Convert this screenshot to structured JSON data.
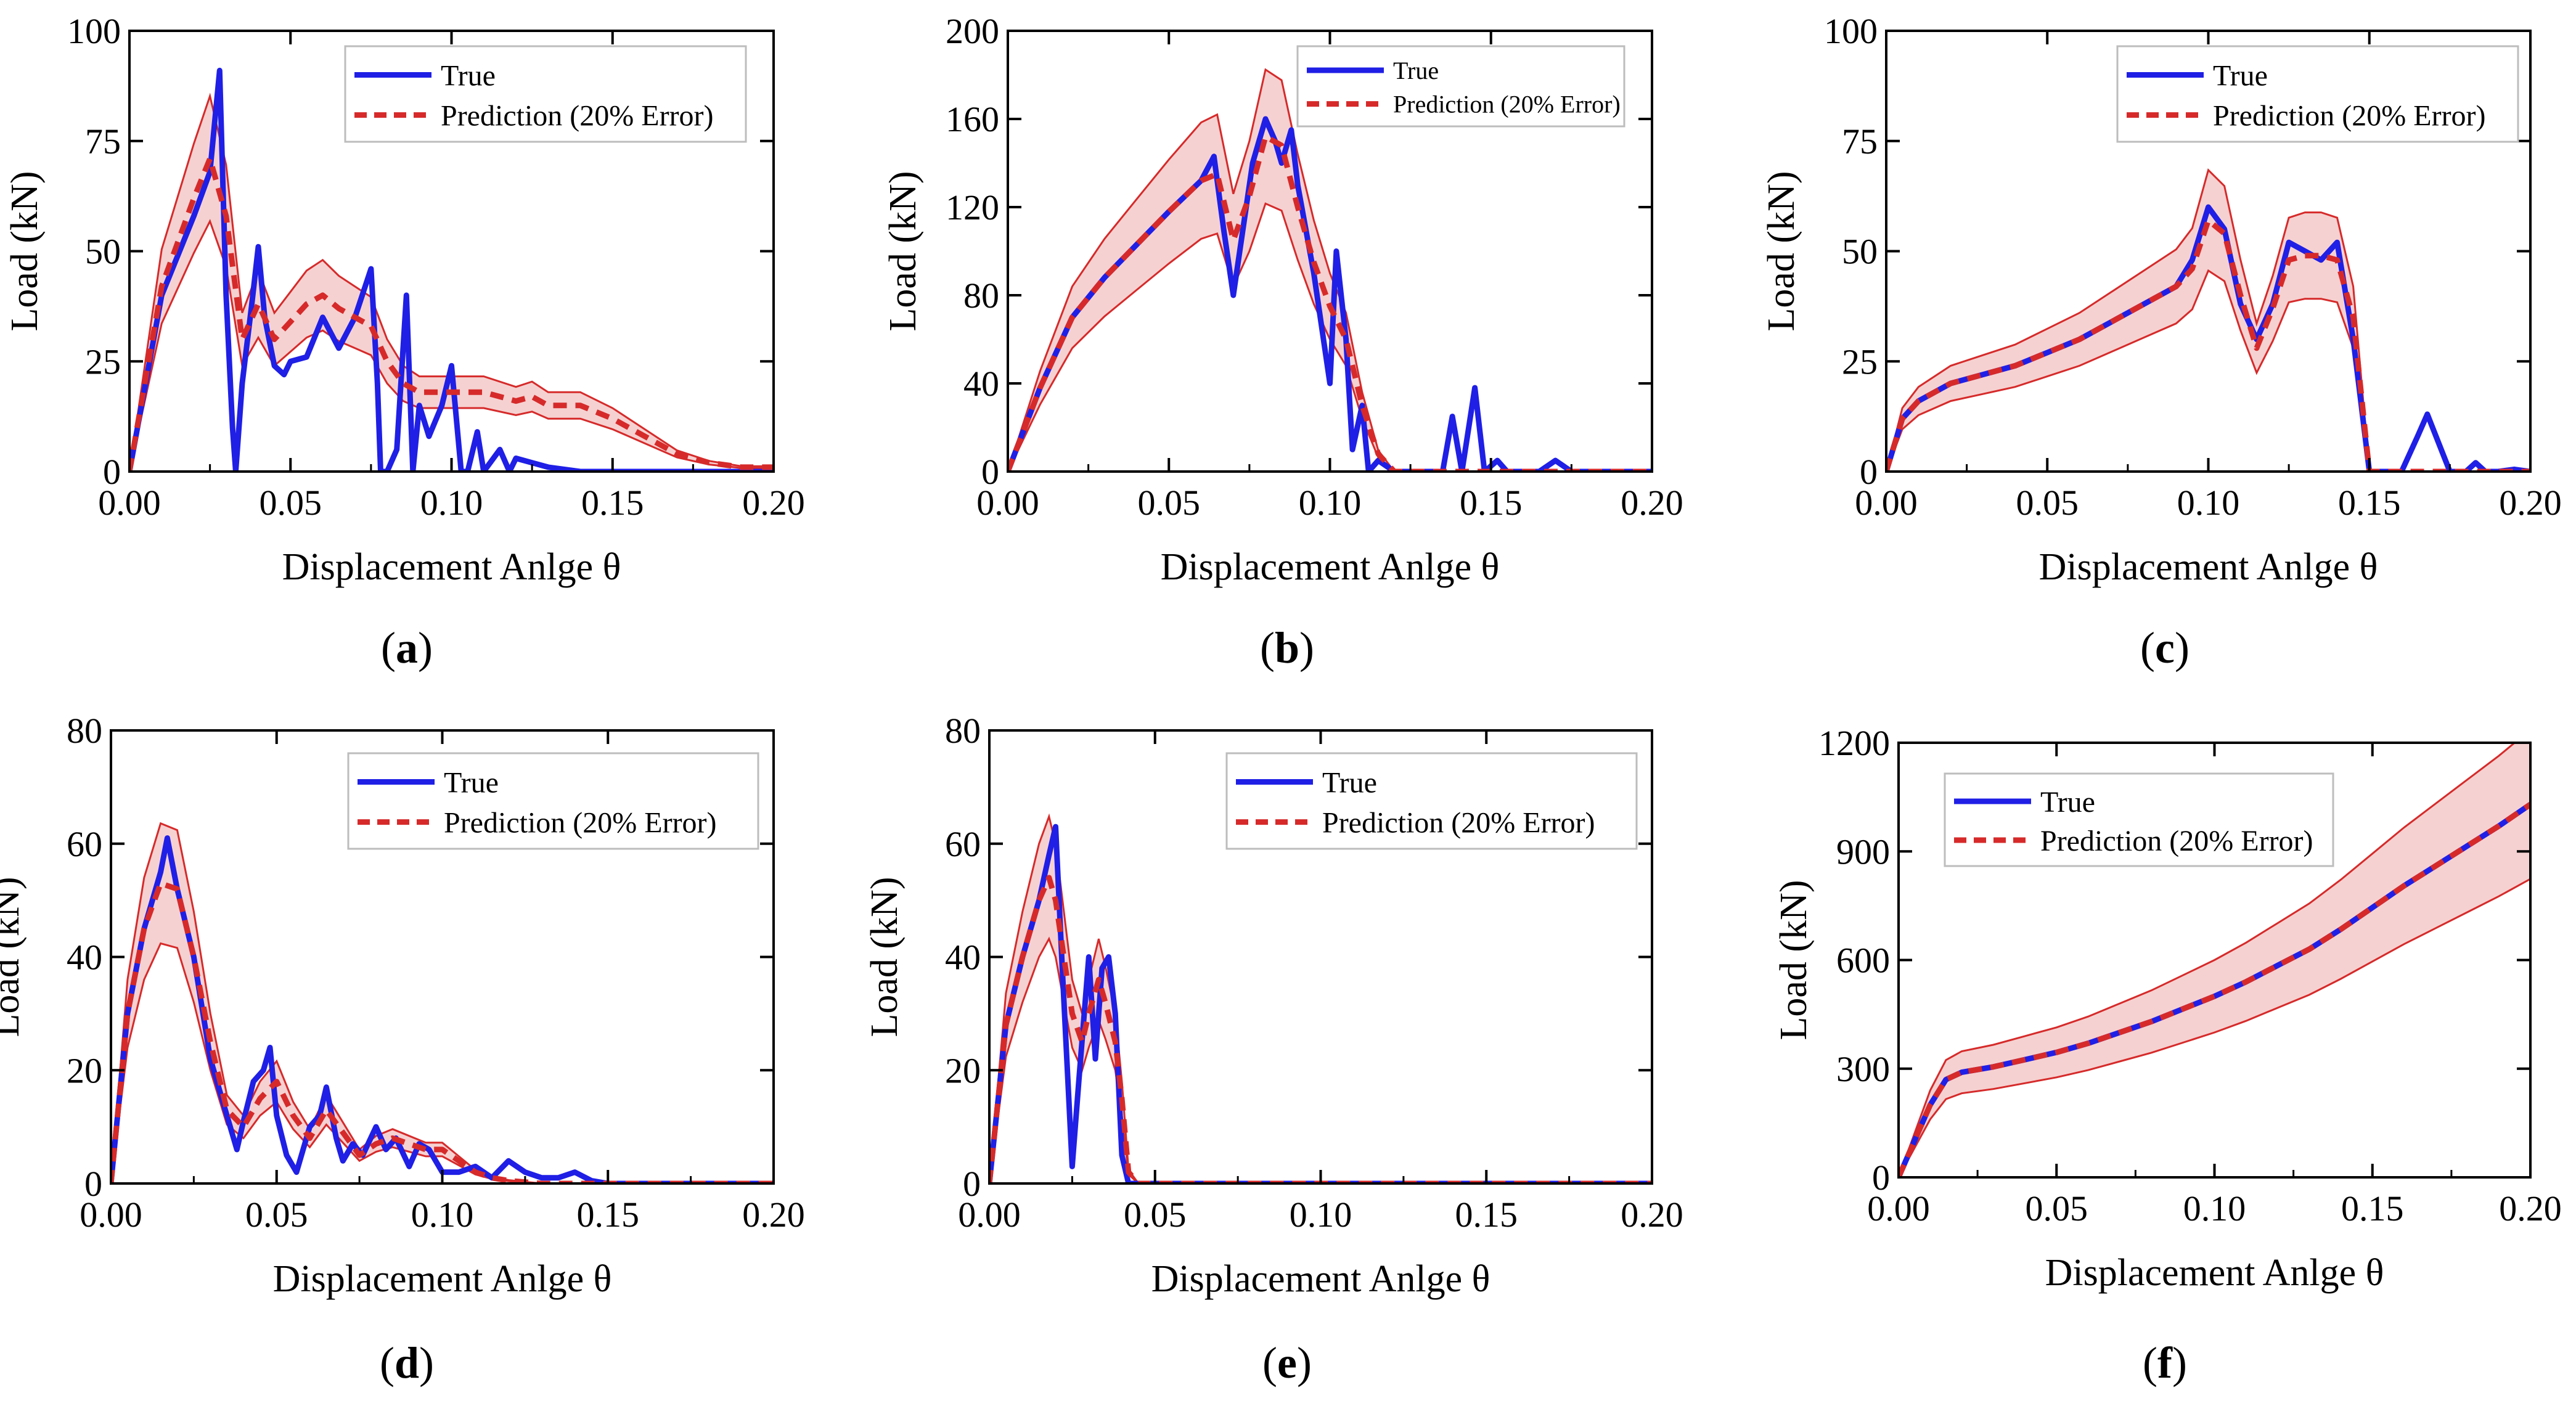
{
  "colors": {
    "true_line": "#1f1fe6",
    "prediction_line": "#d62a2a",
    "band_fill": "#f4c9c9",
    "band_edge": "#d62a2a",
    "axis": "#000000"
  },
  "labels": [
    "(a)",
    "(b)",
    "(c)",
    "(d)",
    "(e)",
    "(f)"
  ],
  "chart_data": [
    {
      "type": "line",
      "panel": "(a)",
      "xlabel": "Displacement Anlge θ",
      "ylabel": "Load (kN)",
      "xlim": [
        0,
        0.2
      ],
      "ylim": [
        0,
        100
      ],
      "xticks": [
        "0.00",
        "0.05",
        "0.10",
        "0.15",
        "0.20"
      ],
      "yticks": [
        "0",
        "25",
        "50",
        "75",
        "100"
      ],
      "legend_position": "top-right",
      "series": [
        {
          "name": "True",
          "x": [
            0,
            0.01,
            0.02,
            0.025,
            0.028,
            0.03,
            0.032,
            0.033,
            0.035,
            0.038,
            0.04,
            0.042,
            0.045,
            0.048,
            0.05,
            0.055,
            0.06,
            0.065,
            0.07,
            0.075,
            0.077,
            0.078,
            0.08,
            0.083,
            0.086,
            0.088,
            0.09,
            0.093,
            0.097,
            0.1,
            0.103,
            0.105,
            0.108,
            0.11,
            0.115,
            0.118,
            0.12,
            0.125,
            0.13,
            0.135,
            0.14,
            0.15,
            0.2
          ],
          "values": [
            0,
            40,
            58,
            68,
            91,
            40,
            10,
            0,
            20,
            38,
            51,
            35,
            24,
            22,
            25,
            26,
            35,
            28,
            35,
            46,
            20,
            0,
            0,
            5,
            40,
            0,
            15,
            8,
            15,
            24,
            0,
            0,
            9,
            0,
            5,
            0,
            3,
            2,
            1,
            0.5,
            0,
            0,
            0
          ]
        },
        {
          "name": "Prediction (20% Error)",
          "x": [
            0,
            0.01,
            0.02,
            0.025,
            0.03,
            0.035,
            0.04,
            0.045,
            0.05,
            0.055,
            0.06,
            0.065,
            0.07,
            0.075,
            0.08,
            0.085,
            0.09,
            0.1,
            0.11,
            0.12,
            0.125,
            0.13,
            0.14,
            0.15,
            0.16,
            0.17,
            0.18,
            0.19,
            0.2
          ],
          "values": [
            0,
            42,
            62,
            71,
            58,
            30,
            38,
            30,
            34,
            38,
            40,
            37,
            35,
            33,
            25,
            20,
            18,
            18,
            18,
            16,
            17,
            15,
            15,
            12,
            8,
            4,
            2,
            1,
            1
          ]
        }
      ]
    },
    {
      "type": "line",
      "panel": "(b)",
      "xlabel": "Displacement Anlge θ",
      "ylabel": "Load (kN)",
      "xlim": [
        0,
        0.2
      ],
      "ylim": [
        0,
        200
      ],
      "xticks": [
        "0.00",
        "0.05",
        "0.10",
        "0.15",
        "0.20"
      ],
      "yticks": [
        "0",
        "40",
        "80",
        "120",
        "160",
        "200"
      ],
      "legend_position": "top-right",
      "series": [
        {
          "name": "True",
          "x": [
            0,
            0.01,
            0.02,
            0.03,
            0.04,
            0.05,
            0.06,
            0.064,
            0.067,
            0.07,
            0.072,
            0.076,
            0.08,
            0.083,
            0.085,
            0.088,
            0.09,
            0.095,
            0.1,
            0.102,
            0.105,
            0.107,
            0.11,
            0.112,
            0.115,
            0.12,
            0.135,
            0.138,
            0.141,
            0.145,
            0.148,
            0.152,
            0.155,
            0.165,
            0.17,
            0.175,
            0.2
          ],
          "values": [
            0,
            38,
            70,
            88,
            103,
            118,
            132,
            143,
            110,
            80,
            100,
            140,
            160,
            150,
            140,
            155,
            130,
            90,
            40,
            100,
            60,
            10,
            30,
            0,
            5,
            0,
            0,
            25,
            0,
            38,
            0,
            5,
            0,
            0,
            5,
            0,
            0
          ]
        },
        {
          "name": "Prediction (20% Error)",
          "x": [
            0,
            0.01,
            0.02,
            0.03,
            0.04,
            0.05,
            0.06,
            0.065,
            0.07,
            0.075,
            0.08,
            0.085,
            0.09,
            0.095,
            0.1,
            0.105,
            0.11,
            0.115,
            0.12,
            0.2
          ],
          "values": [
            0,
            38,
            70,
            88,
            103,
            118,
            132,
            135,
            105,
            125,
            152,
            148,
            120,
            95,
            75,
            60,
            30,
            8,
            0,
            0
          ]
        }
      ]
    },
    {
      "type": "line",
      "panel": "(c)",
      "xlabel": "Displacement Anlge θ",
      "ylabel": "Load (kN)",
      "xlim": [
        0,
        0.2
      ],
      "ylim": [
        0,
        100
      ],
      "xticks": [
        "0.00",
        "0.05",
        "0.10",
        "0.15",
        "0.20"
      ],
      "yticks": [
        "0",
        "25",
        "50",
        "75",
        "100"
      ],
      "legend_position": "top-right",
      "series": [
        {
          "name": "True",
          "x": [
            0,
            0.005,
            0.01,
            0.02,
            0.03,
            0.04,
            0.05,
            0.06,
            0.07,
            0.08,
            0.09,
            0.095,
            0.1,
            0.105,
            0.11,
            0.115,
            0.12,
            0.125,
            0.13,
            0.135,
            0.14,
            0.145,
            0.15,
            0.155,
            0.16,
            0.165,
            0.168,
            0.175,
            0.18,
            0.183,
            0.186,
            0.19,
            0.195,
            0.2
          ],
          "values": [
            0,
            12,
            16,
            20,
            22,
            24,
            27,
            30,
            34,
            38,
            42,
            48,
            60,
            55,
            38,
            30,
            38,
            52,
            50,
            48,
            52,
            30,
            0,
            0,
            0,
            8,
            13,
            0,
            0,
            2,
            0,
            0,
            0.5,
            0
          ]
        },
        {
          "name": "Prediction (20% Error)",
          "x": [
            0,
            0.005,
            0.01,
            0.02,
            0.03,
            0.04,
            0.05,
            0.06,
            0.07,
            0.08,
            0.09,
            0.095,
            0.1,
            0.105,
            0.11,
            0.115,
            0.12,
            0.125,
            0.13,
            0.135,
            0.14,
            0.145,
            0.15,
            0.155,
            0.2
          ],
          "values": [
            0,
            12,
            16,
            20,
            22,
            24,
            27,
            30,
            34,
            38,
            42,
            46,
            57,
            54,
            40,
            28,
            37,
            48,
            49,
            49,
            48,
            35,
            0,
            0,
            0
          ]
        }
      ]
    },
    {
      "type": "line",
      "panel": "(d)",
      "xlabel": "Displacement Anlge θ",
      "ylabel": "Load (kN)",
      "xlim": [
        0,
        0.2
      ],
      "ylim": [
        0,
        80
      ],
      "xticks": [
        "0.00",
        "0.05",
        "0.10",
        "0.15",
        "0.20"
      ],
      "yticks": [
        "0",
        "20",
        "40",
        "60",
        "80"
      ],
      "legend_position": "top-right",
      "series": [
        {
          "name": "True",
          "x": [
            0,
            0.005,
            0.01,
            0.015,
            0.017,
            0.02,
            0.025,
            0.03,
            0.035,
            0.038,
            0.04,
            0.043,
            0.046,
            0.048,
            0.05,
            0.053,
            0.056,
            0.06,
            0.063,
            0.065,
            0.068,
            0.07,
            0.073,
            0.076,
            0.08,
            0.083,
            0.086,
            0.09,
            0.093,
            0.096,
            0.1,
            0.105,
            0.11,
            0.115,
            0.12,
            0.125,
            0.13,
            0.135,
            0.14,
            0.145,
            0.15,
            0.2
          ],
          "values": [
            0,
            30,
            45,
            55,
            61,
            52,
            40,
            22,
            12,
            6,
            11,
            18,
            20,
            24,
            12,
            5,
            2,
            10,
            12,
            17,
            8,
            4,
            7,
            5,
            10,
            6,
            8,
            3,
            7,
            6,
            2,
            2,
            3,
            1,
            4,
            2,
            1,
            1,
            2,
            0.5,
            0,
            0
          ]
        },
        {
          "name": "Prediction (20% Error)",
          "x": [
            0,
            0.005,
            0.01,
            0.015,
            0.02,
            0.025,
            0.03,
            0.035,
            0.04,
            0.045,
            0.05,
            0.055,
            0.06,
            0.065,
            0.07,
            0.075,
            0.08,
            0.085,
            0.09,
            0.095,
            0.1,
            0.105,
            0.11,
            0.115,
            0.12,
            0.13,
            0.15,
            0.2
          ],
          "values": [
            0,
            30,
            45,
            53,
            52,
            40,
            25,
            13,
            10,
            15,
            18,
            12,
            8,
            13,
            9,
            5,
            7,
            8,
            7,
            6,
            6,
            4,
            2,
            1,
            0.5,
            0,
            0,
            0
          ]
        }
      ]
    },
    {
      "type": "line",
      "panel": "(e)",
      "xlabel": "Displacement Anlge θ",
      "ylabel": "Load (kN)",
      "xlim": [
        0,
        0.2
      ],
      "ylim": [
        0,
        80
      ],
      "xticks": [
        "0.00",
        "0.05",
        "0.10",
        "0.15",
        "0.20"
      ],
      "yticks": [
        "0",
        "20",
        "40",
        "60",
        "80"
      ],
      "legend_position": "top-right",
      "series": [
        {
          "name": "True",
          "x": [
            0,
            0.005,
            0.01,
            0.015,
            0.018,
            0.02,
            0.022,
            0.025,
            0.027,
            0.03,
            0.032,
            0.034,
            0.036,
            0.038,
            0.04,
            0.042,
            0.045,
            0.2
          ],
          "values": [
            0,
            28,
            40,
            50,
            58,
            63,
            38,
            3,
            18,
            40,
            22,
            38,
            40,
            30,
            5,
            0,
            0,
            0
          ]
        },
        {
          "name": "Prediction (20% Error)",
          "x": [
            0,
            0.005,
            0.01,
            0.015,
            0.018,
            0.02,
            0.023,
            0.025,
            0.028,
            0.03,
            0.033,
            0.035,
            0.038,
            0.04,
            0.042,
            0.045,
            0.2
          ],
          "values": [
            0,
            28,
            40,
            50,
            54,
            50,
            38,
            30,
            25,
            30,
            36,
            32,
            25,
            15,
            2,
            0,
            0
          ]
        }
      ]
    },
    {
      "type": "line",
      "panel": "(f)",
      "xlabel": "Displacement Anlge θ",
      "ylabel": "Load (kN)",
      "xlim": [
        0,
        0.2
      ],
      "ylim": [
        0,
        1200
      ],
      "xticks": [
        "0.00",
        "0.05",
        "0.10",
        "0.15",
        "0.20"
      ],
      "yticks": [
        "0",
        "300",
        "600",
        "900",
        "1200"
      ],
      "legend_position": "top-left",
      "series": [
        {
          "name": "True",
          "x": [
            0,
            0.005,
            0.01,
            0.015,
            0.02,
            0.03,
            0.04,
            0.05,
            0.06,
            0.07,
            0.08,
            0.09,
            0.1,
            0.11,
            0.12,
            0.13,
            0.14,
            0.15,
            0.16,
            0.17,
            0.18,
            0.19,
            0.2
          ],
          "values": [
            0,
            100,
            200,
            270,
            290,
            305,
            325,
            345,
            370,
            400,
            430,
            465,
            500,
            540,
            585,
            630,
            685,
            745,
            805,
            860,
            915,
            970,
            1030
          ]
        },
        {
          "name": "Prediction (20% Error)",
          "x": [
            0,
            0.005,
            0.01,
            0.015,
            0.02,
            0.03,
            0.04,
            0.05,
            0.06,
            0.07,
            0.08,
            0.09,
            0.1,
            0.11,
            0.12,
            0.13,
            0.14,
            0.15,
            0.16,
            0.17,
            0.18,
            0.19,
            0.2
          ],
          "values": [
            0,
            100,
            200,
            270,
            290,
            305,
            325,
            345,
            370,
            400,
            430,
            465,
            500,
            540,
            585,
            630,
            685,
            745,
            805,
            860,
            915,
            970,
            1030
          ]
        }
      ]
    }
  ]
}
